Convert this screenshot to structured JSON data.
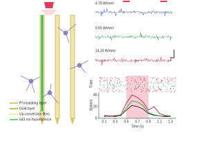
{
  "diagram": {
    "legend": [
      "PI insulating layer",
      "Gold layer",
      "Up-conversion films",
      "543 nm fluorescence"
    ],
    "traces": [
      "4.78 W/mm²",
      "9.55 W/mm²",
      "14.33 W/mm²"
    ]
  },
  "chart_data": {
    "type": "line",
    "raster_label": "Trials",
    "ylabel": "Spike/s",
    "xlabel": "Time (s)",
    "x": [
      0.1,
      0.2,
      0.3,
      0.4,
      0.5,
      0.6,
      0.7,
      0.8,
      0.9,
      1.0,
      1.1,
      1.2,
      1.3
    ],
    "series": [
      {
        "name": "4.78 W/mm²",
        "color": "#222222",
        "values": [
          3,
          4,
          3,
          5,
          14,
          22,
          20,
          16,
          8,
          5,
          4,
          3,
          3
        ]
      },
      {
        "name": "9.55 W/mm²",
        "color": "#2aa040",
        "values": [
          4,
          3,
          5,
          4,
          18,
          30,
          28,
          22,
          10,
          6,
          4,
          4,
          3
        ]
      },
      {
        "name": "14.33 W/mm²",
        "color": "#c8203c",
        "values": [
          5,
          4,
          4,
          6,
          26,
          40,
          36,
          28,
          14,
          20,
          8,
          5,
          4
        ]
      }
    ],
    "highlight": [
      0.5,
      0.9
    ],
    "xlim": [
      0,
      1.4
    ],
    "xticks": [
      0.1,
      0.3,
      0.5,
      0.7,
      0.9,
      1.1,
      1.3
    ],
    "ylim": [
      0,
      45
    ],
    "yticks": [
      0,
      20,
      40
    ]
  }
}
